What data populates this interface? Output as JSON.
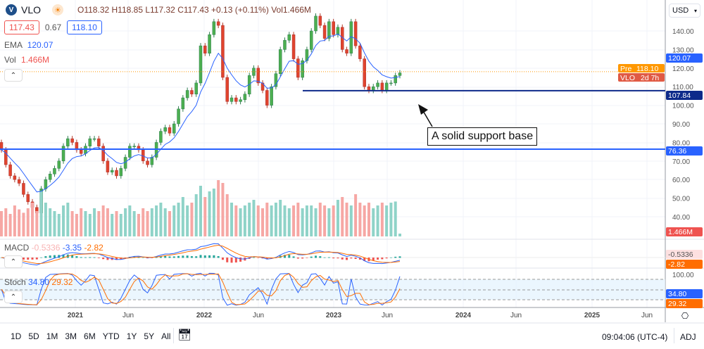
{
  "header": {
    "symbol": "VLO",
    "open": "O118.32",
    "high": "H118.85",
    "low": "L117.32",
    "close": "C117.43",
    "change": "+0.13 (+0.11%)",
    "volume": "Vol1.466M",
    "bid": "117.43",
    "spread": "0.67",
    "ask": "118.10",
    "ema_label": "EMA",
    "ema_value": "120.07",
    "vol_label": "Vol",
    "vol_value": "1.466M"
  },
  "currency": "USD",
  "macd": {
    "label": "MACD",
    "hist": "-0.5336",
    "macd": "-3.35",
    "signal": "-2.82"
  },
  "stoch": {
    "label": "Stoch",
    "k": "34.80",
    "d": "29.32",
    "top": "100.00"
  },
  "badges": {
    "ema": "120.07",
    "pre_label": "Pre",
    "pre": "118.10",
    "sym": "VLO",
    "countdown": "2d 7h",
    "support1": "107.84",
    "support2": "76.36",
    "vol": "1.466M",
    "macd": "-0.5336",
    "signal": "-2.82",
    "k": "34.80",
    "d": "29.32"
  },
  "annotation": "A solid support base",
  "toolbar": {
    "ranges": [
      "1D",
      "5D",
      "1M",
      "3M",
      "6M",
      "YTD",
      "1Y",
      "5Y",
      "All"
    ],
    "time": "09:04:06 (UTC-4)",
    "adj": "ADJ"
  },
  "colors": {
    "up": "#26a69a",
    "down": "#ef5350",
    "ema": "#2962ff",
    "support_high": "#0d2a8a",
    "support_low": "#2962ff",
    "pre": "#ff9800",
    "stoch_k": "#2962ff",
    "stoch_d": "#ff6d00"
  },
  "chart_data": {
    "type": "candlestick",
    "interval": "weekly",
    "price_ticks": [
      140,
      130,
      120,
      110,
      100,
      90,
      80,
      70,
      60,
      50,
      40
    ],
    "x_ticks": [
      "2021",
      "Jun",
      "2022",
      "Jun",
      "2023",
      "Jun",
      "2024",
      "Jun",
      "2025",
      "Jun"
    ],
    "close": [
      76,
      68,
      62,
      60,
      58,
      52,
      48,
      45,
      42,
      55,
      60,
      63,
      66,
      70,
      78,
      82,
      80,
      76,
      74,
      78,
      82,
      82,
      78,
      70,
      64,
      65,
      62,
      66,
      72,
      78,
      78,
      76,
      70,
      68,
      72,
      80,
      86,
      88,
      85,
      90,
      98,
      104,
      108,
      106,
      112,
      132,
      128,
      138,
      145,
      143,
      115,
      102,
      104,
      102,
      103,
      106,
      116,
      120,
      112,
      108,
      100,
      110,
      117,
      130,
      135,
      138,
      125,
      115,
      124,
      130,
      140,
      148,
      143,
      136,
      145,
      138,
      142,
      130,
      128,
      145,
      132,
      125,
      110,
      108,
      110,
      112,
      108,
      112,
      112,
      116,
      117.43
    ],
    "volume_rel": [
      0.45,
      0.5,
      0.4,
      0.55,
      0.48,
      0.42,
      0.5,
      0.6,
      0.45,
      0.8,
      0.6,
      0.5,
      0.45,
      0.4,
      0.55,
      0.6,
      0.45,
      0.4,
      0.5,
      0.45,
      0.4,
      0.5,
      0.45,
      0.55,
      0.5,
      0.4,
      0.45,
      0.4,
      0.5,
      0.55,
      0.45,
      0.4,
      0.5,
      0.45,
      0.5,
      0.55,
      0.6,
      0.5,
      0.45,
      0.55,
      0.6,
      0.7,
      0.55,
      0.6,
      0.75,
      0.9,
      0.7,
      0.8,
      0.85,
      1.0,
      0.95,
      0.75,
      0.6,
      0.55,
      0.5,
      0.55,
      0.6,
      0.65,
      0.55,
      0.5,
      0.6,
      0.55,
      0.6,
      0.65,
      0.55,
      0.5,
      0.55,
      0.6,
      0.5,
      0.55,
      0.55,
      0.5,
      0.6,
      0.55,
      0.5,
      0.55,
      0.65,
      0.7,
      0.6,
      0.55,
      0.75,
      0.6,
      0.55,
      0.6,
      0.5,
      0.55,
      0.6,
      0.55,
      0.6,
      0.62,
      0.05
    ],
    "horizontal_levels": [
      {
        "value": 107.84
      },
      {
        "value": 76.36
      }
    ],
    "premarket": 118.1
  }
}
